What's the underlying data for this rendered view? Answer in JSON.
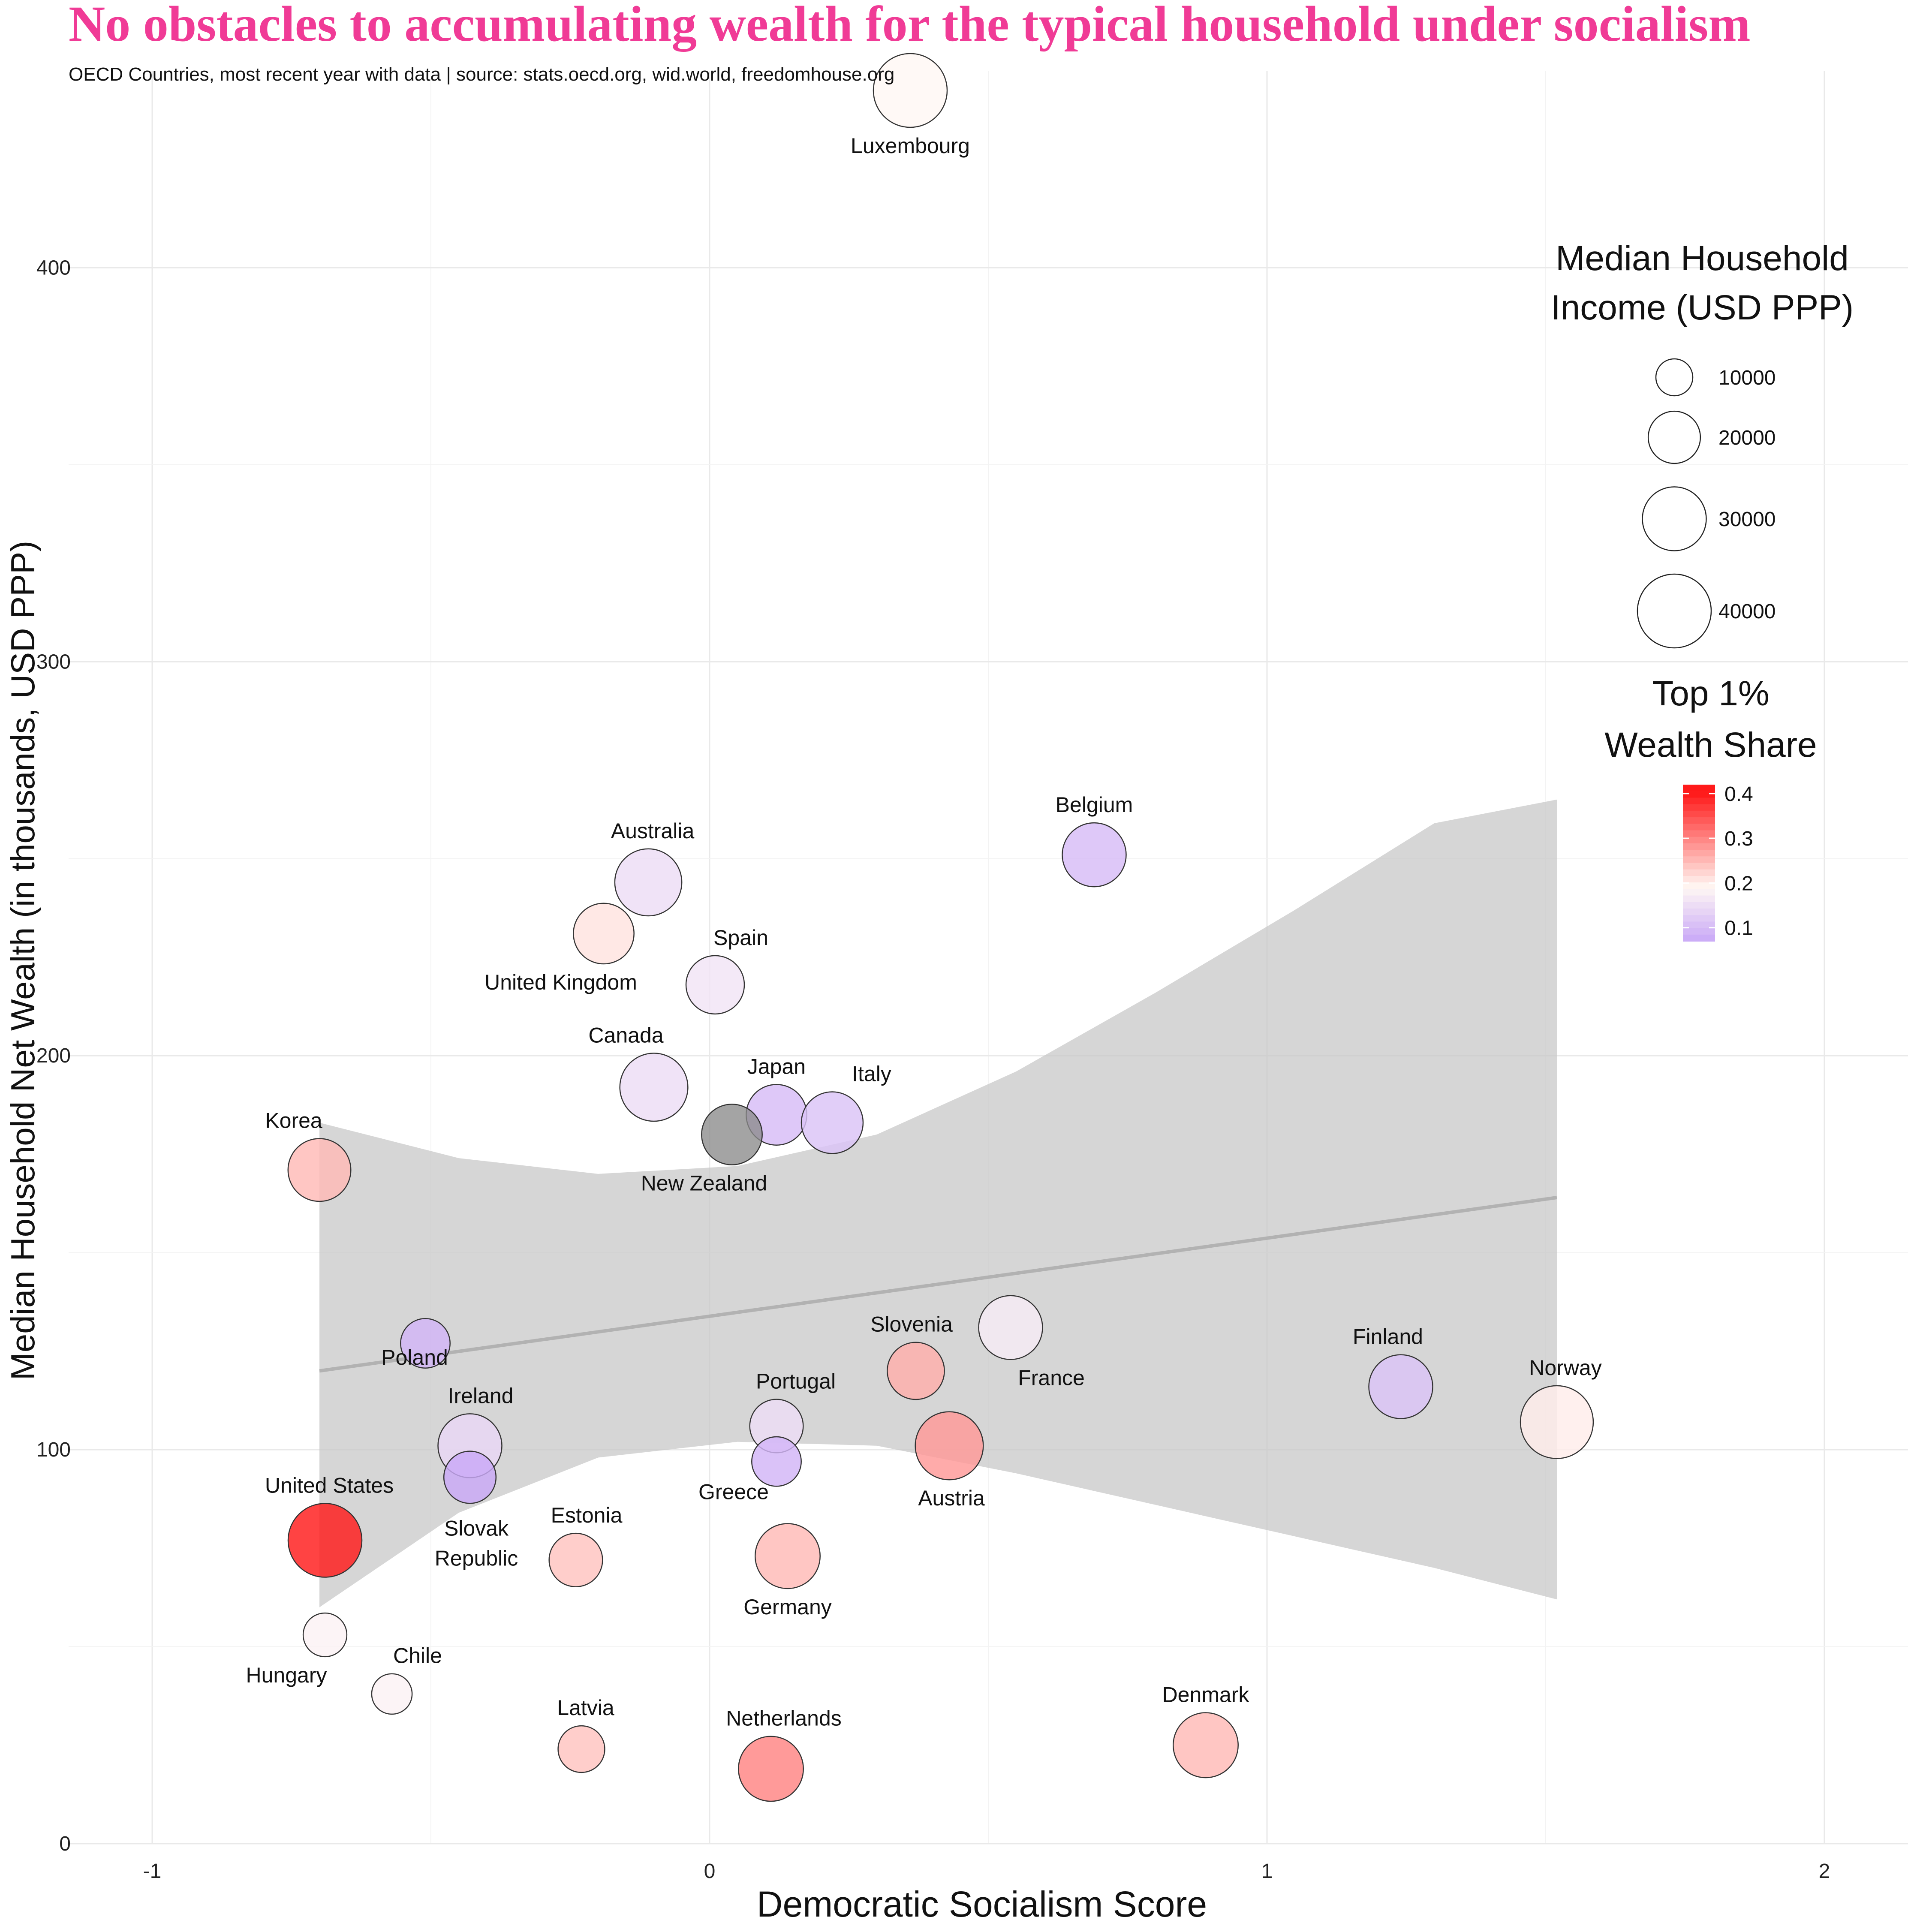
{
  "chart_data": {
    "type": "scatter",
    "title": "No obstacles to accumulating wealth for the typical household under socialism",
    "subtitle": "OECD Countries, most recent year with data | source: stats.oecd.org, wid.world, freedomhouse.org",
    "xlabel": "Democratic Socialism Score",
    "ylabel": "Median Household Net Wealth (in thousands, USD PPP)",
    "xlim": [
      -1.15,
      2.15
    ],
    "ylim": [
      0,
      450
    ],
    "x_ticks": [
      -1,
      0,
      1,
      2
    ],
    "x_tick_labels": [
      "-1",
      "0",
      "1",
      "2"
    ],
    "y_ticks": [
      0,
      100,
      200,
      300,
      400
    ],
    "y_tick_labels": [
      "0",
      "100",
      "200",
      "300",
      "400"
    ],
    "grid": true,
    "legend_position": "right",
    "size_legend": {
      "title_lines": [
        "Median Household",
        "Income (USD PPP)"
      ],
      "values": [
        10000,
        20000,
        30000,
        40000
      ],
      "labels": [
        "10000",
        "20000",
        "30000",
        "40000"
      ]
    },
    "color_legend": {
      "title_lines": [
        "Top 1%",
        "Wealth Share"
      ],
      "ticks": [
        0.1,
        0.2,
        0.3,
        0.4
      ],
      "tick_labels": [
        "0.1",
        "0.2",
        "0.3",
        "0.4"
      ],
      "low_color": "#c9a8f7",
      "mid_color": "#fff8f4",
      "high_color": "#ff1a1a"
    },
    "trend": {
      "x": [
        -0.7,
        1.52
      ],
      "y": [
        120,
        164
      ],
      "band_x": [
        -0.7,
        -0.45,
        -0.2,
        0.05,
        0.3,
        0.55,
        0.8,
        1.05,
        1.3,
        1.52
      ],
      "band_upper": [
        183,
        174,
        170,
        172,
        180,
        196,
        216,
        237,
        259,
        265
      ],
      "band_lower": [
        60,
        84,
        98,
        102,
        101,
        94,
        86,
        78,
        70,
        62
      ]
    },
    "points": [
      {
        "name": "Luxembourg",
        "x": 0.36,
        "y": 445,
        "income": 40000,
        "share": 0.19
      },
      {
        "name": "Belgium",
        "x": 0.69,
        "y": 251,
        "income": 30000,
        "share": 0.1
      },
      {
        "name": "Australia",
        "x": -0.11,
        "y": 244,
        "income": 33000,
        "share": 0.15
      },
      {
        "name": "United Kingdom",
        "x": -0.19,
        "y": 231,
        "income": 27000,
        "share": 0.21
      },
      {
        "name": "Spain",
        "x": 0.01,
        "y": 218,
        "income": 25000,
        "share": 0.16
      },
      {
        "name": "Canada",
        "x": -0.1,
        "y": 192,
        "income": 34000,
        "share": 0.15
      },
      {
        "name": "Japan",
        "x": 0.12,
        "y": 185,
        "income": 27000,
        "share": 0.1
      },
      {
        "name": "Italy",
        "x": 0.22,
        "y": 183,
        "income": 28000,
        "share": 0.11
      },
      {
        "name": "New Zealand",
        "x": 0.04,
        "y": 180,
        "income": 27000,
        "share": null
      },
      {
        "name": "Korea",
        "x": -0.7,
        "y": 171,
        "income": 29000,
        "share": 0.25
      },
      {
        "name": "France",
        "x": 0.54,
        "y": 131,
        "income": 30000,
        "share": 0.17
      },
      {
        "name": "Poland",
        "x": -0.51,
        "y": 127,
        "income": 18000,
        "share": 0.09
      },
      {
        "name": "Slovenia",
        "x": 0.37,
        "y": 120,
        "income": 24000,
        "share": 0.26
      },
      {
        "name": "Finland",
        "x": 1.24,
        "y": 116,
        "income": 30000,
        "share": 0.11
      },
      {
        "name": "Norway",
        "x": 1.52,
        "y": 107,
        "income": 39000,
        "share": 0.2
      },
      {
        "name": "Portugal",
        "x": 0.12,
        "y": 106,
        "income": 21000,
        "share": 0.15
      },
      {
        "name": "Ireland",
        "x": -0.43,
        "y": 101,
        "income": 30000,
        "share": 0.14
      },
      {
        "name": "Austria",
        "x": 0.43,
        "y": 101,
        "income": 34000,
        "share": 0.28
      },
      {
        "name": "Greece",
        "x": 0.12,
        "y": 97,
        "income": 18000,
        "share": 0.09
      },
      {
        "name": "Slovak Republic",
        "x": -0.43,
        "y": 93,
        "income": 20000,
        "share": 0.07
      },
      {
        "name": "United States",
        "x": -0.69,
        "y": 77,
        "income": 40000,
        "share": 0.4
      },
      {
        "name": "Germany",
        "x": 0.14,
        "y": 73,
        "income": 31000,
        "share": 0.25
      },
      {
        "name": "Estonia",
        "x": -0.24,
        "y": 72,
        "income": 21000,
        "share": 0.24
      },
      {
        "name": "Hungary",
        "x": -0.69,
        "y": 53,
        "income": 14000,
        "share": 0.18
      },
      {
        "name": "Chile",
        "x": -0.57,
        "y": 38,
        "income": 12000,
        "share": 0.18
      },
      {
        "name": "Latvia",
        "x": -0.23,
        "y": 24,
        "income": 16000,
        "share": 0.24
      },
      {
        "name": "Netherlands",
        "x": 0.11,
        "y": 19,
        "income": 31000,
        "share": 0.3
      },
      {
        "name": "Denmark",
        "x": 0.89,
        "y": 25,
        "income": 31000,
        "share": 0.25
      }
    ]
  }
}
